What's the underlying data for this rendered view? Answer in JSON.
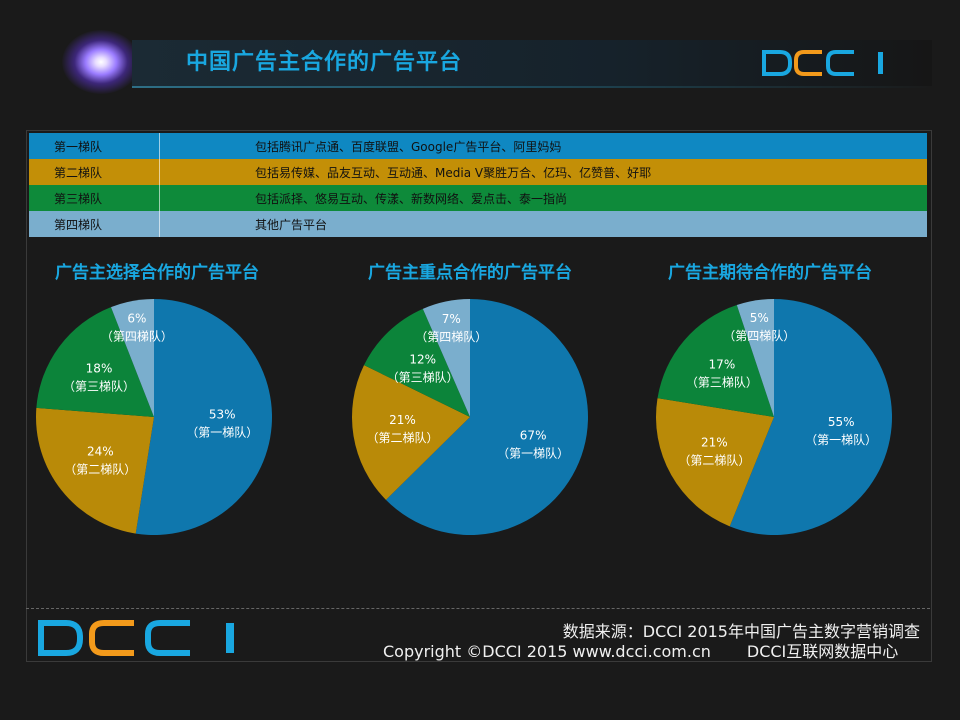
{
  "header": {
    "title": "中国广告主合作的广告平台",
    "logo_text": "DCCI"
  },
  "tiers": [
    {
      "name": "第一梯队",
      "desc": "包括腾讯广点通、百度联盟、Google广告平台、阿里妈妈",
      "color": "#0f88c2"
    },
    {
      "name": "第二梯队",
      "desc": "包括易传媒、品友互动、互动通、Media V聚胜万合、亿玛、亿赞普、好耶",
      "color": "#c38f07"
    },
    {
      "name": "第三梯队",
      "desc": "包括派择、悠易互动、传漾、新数网络、爱点击、泰一指尚",
      "color": "#0e8a3a"
    },
    {
      "name": "第四梯队",
      "desc": "其他广告平台",
      "color": "#7aaecd"
    }
  ],
  "chart_data": [
    {
      "type": "pie",
      "title": "广告主选择合作的广告平台",
      "categories": [
        "（第一梯队）",
        "（第二梯队）",
        "（第三梯队）",
        "（第四梯队）"
      ],
      "values": [
        53,
        24,
        18,
        6
      ],
      "value_labels": [
        "53%",
        "24%",
        "18%",
        "6%"
      ],
      "colors": [
        "#0f77ad",
        "#b98a08",
        "#0c843a",
        "#7aaecd"
      ]
    },
    {
      "type": "pie",
      "title": "广告主重点合作的广告平台",
      "categories": [
        "（第一梯队）",
        "（第二梯队）",
        "（第三梯队）",
        "（第四梯队）"
      ],
      "values": [
        67,
        21,
        12,
        7
      ],
      "value_labels": [
        "67%",
        "21%",
        "12%",
        "7%"
      ],
      "colors": [
        "#0f77ad",
        "#b98a08",
        "#0c843a",
        "#7aaecd"
      ]
    },
    {
      "type": "pie",
      "title": "广告主期待合作的广告平台",
      "categories": [
        "（第一梯队）",
        "（第二梯队）",
        "（第三梯队）",
        "（第四梯队）"
      ],
      "values": [
        55,
        21,
        17,
        5
      ],
      "value_labels": [
        "55%",
        "21%",
        "17%",
        "5%"
      ],
      "colors": [
        "#0f77ad",
        "#b98a08",
        "#0c843a",
        "#7aaecd"
      ]
    }
  ],
  "footer": {
    "source": "数据来源：DCCI  2015年中国广告主数字营销调查",
    "copyright": "Copyright ©DCCI 2015 www.dcci.com.cn",
    "org": "DCCI互联网数据中心"
  }
}
